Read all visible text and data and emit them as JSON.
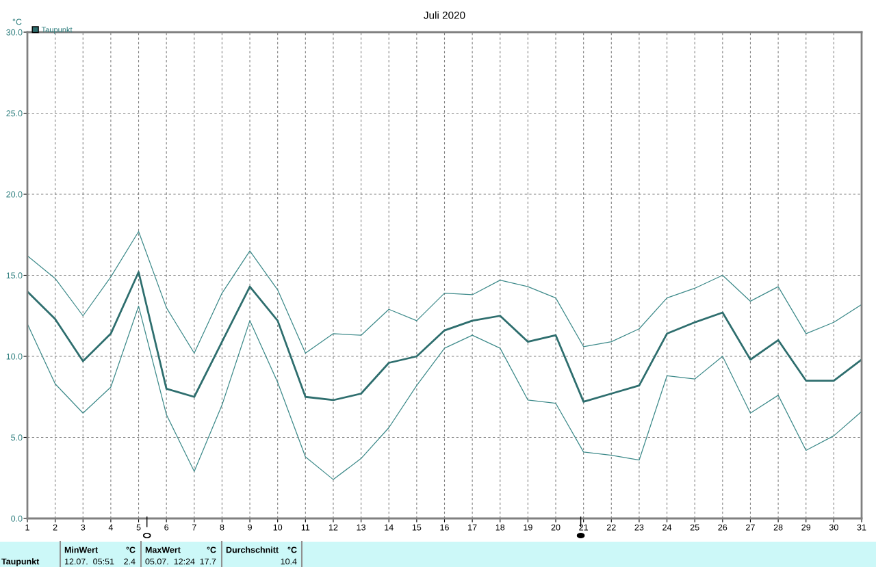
{
  "chart_data": {
    "type": "line",
    "title": "Juli 2020",
    "ylabel": "°C",
    "x": [
      1,
      2,
      3,
      4,
      5,
      6,
      7,
      8,
      9,
      10,
      11,
      12,
      13,
      14,
      15,
      16,
      17,
      18,
      19,
      20,
      21,
      22,
      23,
      24,
      25,
      26,
      27,
      28,
      29,
      30,
      31
    ],
    "series": [
      {
        "color": "#3d8a8a",
        "values": [
          16.2,
          14.8,
          12.5,
          14.9,
          17.7,
          13.0,
          10.2,
          13.9,
          16.5,
          14.1,
          10.2,
          11.4,
          11.3,
          12.9,
          12.2,
          13.9,
          13.8,
          14.7,
          14.3,
          13.6,
          10.6,
          10.9,
          11.7,
          13.6,
          14.2,
          15.0,
          13.4,
          14.3,
          11.4,
          12.1,
          13.2
        ]
      },
      {
        "color": "#3d8a8a",
        "values": [
          12.0,
          8.3,
          6.5,
          8.1,
          13.1,
          6.4,
          2.9,
          7.0,
          12.2,
          8.4,
          3.8,
          2.4,
          3.7,
          5.6,
          8.2,
          10.5,
          11.3,
          10.5,
          7.3,
          7.1,
          4.1,
          3.9,
          3.6,
          8.8,
          8.6,
          10.0,
          6.5,
          7.6,
          4.2,
          5.1,
          6.6
        ]
      },
      {
        "name": "Taupunkt",
        "color": "#2e6e6e",
        "values": [
          14.0,
          12.3,
          9.7,
          11.4,
          15.2,
          8.0,
          7.5,
          10.9,
          14.3,
          12.2,
          7.5,
          7.3,
          7.7,
          9.6,
          10.0,
          11.6,
          12.2,
          12.5,
          10.9,
          11.3,
          7.2,
          7.7,
          8.2,
          11.4,
          12.1,
          12.7,
          9.8,
          11.0,
          8.5,
          8.5,
          9.8
        ]
      }
    ],
    "xlim": [
      1,
      31
    ],
    "xticks": [
      1,
      2,
      3,
      4,
      5,
      6,
      7,
      8,
      9,
      10,
      11,
      12,
      13,
      14,
      15,
      16,
      17,
      18,
      19,
      20,
      21,
      22,
      23,
      24,
      25,
      26,
      27,
      28,
      29,
      30,
      31
    ],
    "ylim": [
      0,
      30
    ],
    "yticks": [
      {
        "value": 0,
        "label": "0.0"
      },
      {
        "value": 5,
        "label": "5.0"
      },
      {
        "value": 10,
        "label": "10.0"
      },
      {
        "value": 15,
        "label": "15.0"
      },
      {
        "value": 20,
        "label": "20.0"
      },
      {
        "value": 25,
        "label": "25.0"
      },
      {
        "value": 30,
        "label": "30.0"
      }
    ],
    "grid": true,
    "legend": "top left",
    "line_style": "solid",
    "marker": "none",
    "annotations": [
      "Taupunkt",
      "MinWert",
      "°C",
      "12.07.  05:51",
      "2.4",
      "MaxWert",
      "°C",
      "05.07.  12:24",
      "17.7",
      "Durchschnitt",
      "°C",
      "10.4"
    ]
  }
}
